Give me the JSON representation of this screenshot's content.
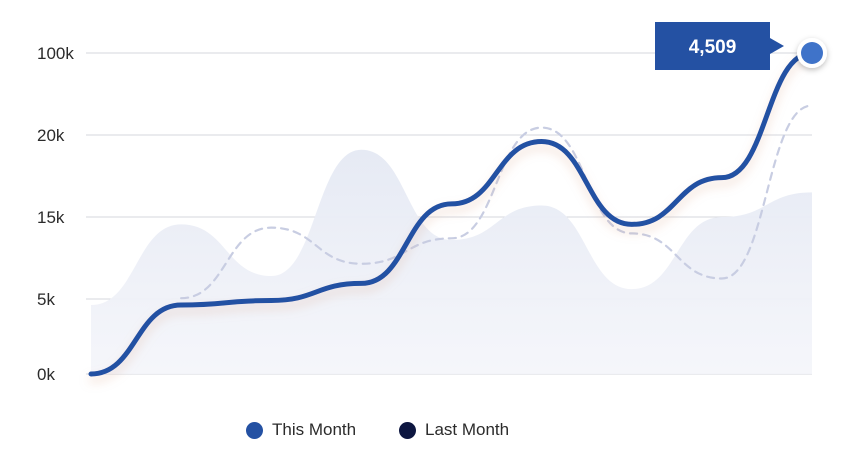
{
  "chart_data": {
    "type": "line",
    "x": [
      0,
      1,
      2,
      3,
      4,
      5,
      6,
      7,
      8
    ],
    "y_ticks": [
      "0k",
      "5k",
      "15k",
      "20k",
      "100k"
    ],
    "series": [
      {
        "name": "This Month",
        "color": "#2451a3",
        "style": "solid",
        "values": [
          0,
          4.6,
          4.9,
          6.9,
          15.8,
          19.6,
          14.1,
          17.4,
          30.0
        ]
      },
      {
        "name": "Last Month",
        "color": "#0d1640",
        "style": "dashed",
        "values": [
          null,
          5.1,
          13.7,
          9.3,
          12.4,
          20.9,
          13.0,
          7.5,
          23.6
        ]
      },
      {
        "name": "",
        "color": "#e9ecf5",
        "style": "area",
        "values": [
          4.6,
          14.1,
          7.8,
          19.1,
          12.2,
          15.7,
          6.2,
          15.0,
          16.5
        ]
      }
    ],
    "callout": {
      "value": "4,509",
      "color": "#2451a3"
    },
    "grid": true
  }
}
